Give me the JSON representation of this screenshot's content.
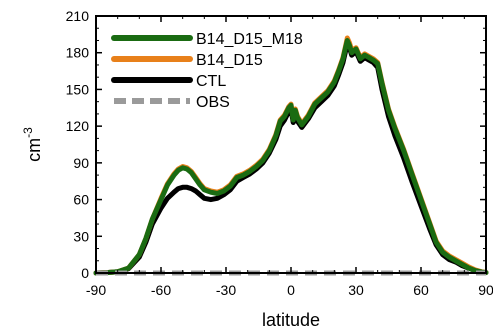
{
  "chart_data": {
    "type": "line",
    "title": "",
    "xlabel": "latitude",
    "ylabel": "cm",
    "ylabel_sup": "-3",
    "xlim": [
      -90,
      90
    ],
    "ylim": [
      0,
      210
    ],
    "xticks": [
      -90,
      -60,
      -30,
      0,
      30,
      60,
      90
    ],
    "yticks": [
      0,
      30,
      60,
      90,
      120,
      150,
      180,
      210
    ],
    "x_tick_labels": [
      "-90",
      "-60",
      "-30",
      "0",
      "30",
      "60",
      "90"
    ],
    "y_tick_labels": [
      "0",
      "30",
      "60",
      "90",
      "120",
      "150",
      "180",
      "210"
    ],
    "grid": false,
    "legend_position": "top-left",
    "series": [
      {
        "name": "B14_D15_M18",
        "color": "#1a6b12",
        "style": "solid",
        "points": [
          [
            -90,
            0
          ],
          [
            -85,
            0.3
          ],
          [
            -80,
            1
          ],
          [
            -75,
            4
          ],
          [
            -70,
            15
          ],
          [
            -67,
            28
          ],
          [
            -64,
            44
          ],
          [
            -60,
            60
          ],
          [
            -57,
            72
          ],
          [
            -54,
            80
          ],
          [
            -52,
            84
          ],
          [
            -50,
            86
          ],
          [
            -48,
            85
          ],
          [
            -46,
            82
          ],
          [
            -44,
            77
          ],
          [
            -42,
            72
          ],
          [
            -40,
            68
          ],
          [
            -37,
            66
          ],
          [
            -34,
            65
          ],
          [
            -31,
            67
          ],
          [
            -28,
            71
          ],
          [
            -25,
            78
          ],
          [
            -22,
            80
          ],
          [
            -19,
            83
          ],
          [
            -16,
            87
          ],
          [
            -13,
            92
          ],
          [
            -10,
            100
          ],
          [
            -7,
            112
          ],
          [
            -5,
            124
          ],
          [
            -3,
            128
          ],
          [
            -1,
            135
          ],
          [
            0,
            137
          ],
          [
            1,
            125
          ],
          [
            2,
            133
          ],
          [
            3,
            127
          ],
          [
            5,
            121
          ],
          [
            8,
            128
          ],
          [
            11,
            138
          ],
          [
            14,
            143
          ],
          [
            17,
            148
          ],
          [
            20,
            156
          ],
          [
            22,
            165
          ],
          [
            24,
            175
          ],
          [
            25,
            183
          ],
          [
            26,
            190
          ],
          [
            27,
            186
          ],
          [
            28,
            180
          ],
          [
            30,
            183
          ],
          [
            32,
            175
          ],
          [
            34,
            178
          ],
          [
            36,
            176
          ],
          [
            38,
            174
          ],
          [
            40,
            171
          ],
          [
            42,
            155
          ],
          [
            45,
            133
          ],
          [
            48,
            118
          ],
          [
            52,
            100
          ],
          [
            56,
            80
          ],
          [
            60,
            60
          ],
          [
            64,
            40
          ],
          [
            67,
            25
          ],
          [
            70,
            17
          ],
          [
            73,
            13
          ],
          [
            76,
            10
          ],
          [
            79,
            7
          ],
          [
            82,
            4
          ],
          [
            85,
            2
          ],
          [
            88,
            0.7
          ],
          [
            90,
            0.3
          ]
        ]
      },
      {
        "name": "B14_D15",
        "color": "#e8801a",
        "style": "solid",
        "points": [
          [
            -90,
            0
          ],
          [
            -85,
            0.3
          ],
          [
            -80,
            1
          ],
          [
            -75,
            4
          ],
          [
            -70,
            15
          ],
          [
            -67,
            28
          ],
          [
            -64,
            44
          ],
          [
            -60,
            61
          ],
          [
            -57,
            73
          ],
          [
            -54,
            81
          ],
          [
            -52,
            85
          ],
          [
            -50,
            87
          ],
          [
            -48,
            86
          ],
          [
            -46,
            83
          ],
          [
            -44,
            78
          ],
          [
            -42,
            73
          ],
          [
            -40,
            69
          ],
          [
            -37,
            67
          ],
          [
            -34,
            66
          ],
          [
            -31,
            68
          ],
          [
            -28,
            72
          ],
          [
            -25,
            79
          ],
          [
            -22,
            81
          ],
          [
            -19,
            84
          ],
          [
            -16,
            88
          ],
          [
            -13,
            93
          ],
          [
            -10,
            101
          ],
          [
            -7,
            113
          ],
          [
            -5,
            125
          ],
          [
            -3,
            129
          ],
          [
            -1,
            136
          ],
          [
            0,
            138
          ],
          [
            1,
            126
          ],
          [
            2,
            134
          ],
          [
            3,
            128
          ],
          [
            5,
            122
          ],
          [
            8,
            129
          ],
          [
            11,
            139
          ],
          [
            14,
            144
          ],
          [
            17,
            149
          ],
          [
            20,
            157
          ],
          [
            22,
            166
          ],
          [
            24,
            176
          ],
          [
            25,
            184
          ],
          [
            26,
            192
          ],
          [
            27,
            188
          ],
          [
            28,
            182
          ],
          [
            30,
            184
          ],
          [
            32,
            176
          ],
          [
            34,
            179
          ],
          [
            36,
            177
          ],
          [
            38,
            175
          ],
          [
            40,
            172
          ],
          [
            42,
            156
          ],
          [
            45,
            134
          ],
          [
            48,
            119
          ],
          [
            52,
            101
          ],
          [
            56,
            81
          ],
          [
            60,
            61
          ],
          [
            64,
            41
          ],
          [
            67,
            26
          ],
          [
            70,
            18
          ],
          [
            73,
            14
          ],
          [
            76,
            11
          ],
          [
            79,
            8
          ],
          [
            82,
            5
          ],
          [
            85,
            2.5
          ],
          [
            88,
            1
          ],
          [
            90,
            0.4
          ]
        ]
      },
      {
        "name": "CTL",
        "color": "#000000",
        "style": "solid",
        "points": [
          [
            -90,
            0
          ],
          [
            -85,
            0.3
          ],
          [
            -80,
            1
          ],
          [
            -75,
            3.5
          ],
          [
            -70,
            13
          ],
          [
            -67,
            25
          ],
          [
            -64,
            40
          ],
          [
            -60,
            53
          ],
          [
            -57,
            61
          ],
          [
            -54,
            66
          ],
          [
            -52,
            69
          ],
          [
            -50,
            70
          ],
          [
            -48,
            70
          ],
          [
            -46,
            69
          ],
          [
            -44,
            67
          ],
          [
            -42,
            64
          ],
          [
            -40,
            61
          ],
          [
            -37,
            60
          ],
          [
            -34,
            61
          ],
          [
            -31,
            64
          ],
          [
            -28,
            68
          ],
          [
            -25,
            75
          ],
          [
            -22,
            78
          ],
          [
            -19,
            81
          ],
          [
            -16,
            85
          ],
          [
            -13,
            90
          ],
          [
            -10,
            98
          ],
          [
            -7,
            109
          ],
          [
            -5,
            120
          ],
          [
            -3,
            125
          ],
          [
            -1,
            132
          ],
          [
            0,
            134
          ],
          [
            1,
            123
          ],
          [
            2,
            130
          ],
          [
            3,
            124
          ],
          [
            5,
            119
          ],
          [
            8,
            126
          ],
          [
            11,
            135
          ],
          [
            14,
            140
          ],
          [
            17,
            145
          ],
          [
            20,
            153
          ],
          [
            22,
            162
          ],
          [
            24,
            172
          ],
          [
            25,
            180
          ],
          [
            26,
            188
          ],
          [
            27,
            184
          ],
          [
            28,
            178
          ],
          [
            30,
            181
          ],
          [
            32,
            173
          ],
          [
            34,
            176
          ],
          [
            36,
            174
          ],
          [
            38,
            172
          ],
          [
            40,
            168
          ],
          [
            42,
            150
          ],
          [
            45,
            128
          ],
          [
            48,
            112
          ],
          [
            52,
            94
          ],
          [
            56,
            74
          ],
          [
            60,
            55
          ],
          [
            64,
            36
          ],
          [
            67,
            23
          ],
          [
            70,
            15
          ],
          [
            73,
            11
          ],
          [
            76,
            9
          ],
          [
            79,
            6
          ],
          [
            82,
            4
          ],
          [
            85,
            2
          ],
          [
            88,
            0.7
          ],
          [
            90,
            0.3
          ]
        ]
      },
      {
        "name": "OBS",
        "color": "#9a9a9a",
        "style": "dashed",
        "points": [
          [
            -90,
            0
          ],
          [
            90,
            0
          ]
        ]
      }
    ]
  }
}
